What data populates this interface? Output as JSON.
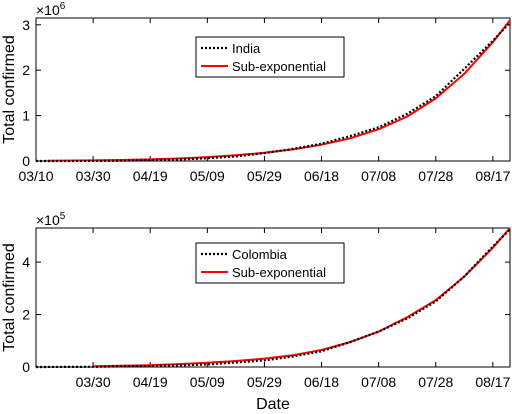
{
  "chart_data": [
    {
      "type": "line",
      "ylabel": "Total confirmed",
      "xlabel": "",
      "y_multiplier_base": "×10",
      "y_multiplier_exp": "6",
      "x_range": [
        "03/10",
        "08/23"
      ],
      "ylim": [
        0,
        3.15
      ],
      "y_ticks": [
        "0",
        "1",
        "2",
        "3"
      ],
      "x_tick_labels": [
        "03/10",
        "03/30",
        "04/19",
        "05/09",
        "05/29",
        "06/18",
        "07/08",
        "07/28",
        "08/17"
      ],
      "legend_placement": "top-center",
      "grid": false,
      "series": [
        {
          "name": "India",
          "style": "dotted",
          "color": "#000000",
          "x": [
            "03/10",
            "03/20",
            "03/30",
            "04/09",
            "04/19",
            "04/29",
            "05/09",
            "05/19",
            "05/29",
            "06/08",
            "06/18",
            "06/28",
            "07/08",
            "07/18",
            "07/28",
            "08/07",
            "08/17",
            "08/23"
          ],
          "values": [
            0.0001,
            0.0003,
            0.0012,
            0.007,
            0.017,
            0.033,
            0.062,
            0.101,
            0.173,
            0.266,
            0.381,
            0.549,
            0.743,
            1.04,
            1.43,
            2.03,
            2.65,
            3.05
          ]
        },
        {
          "name": "Sub-exponential",
          "style": "solid",
          "color": "#ff0000",
          "x": [
            "03/14",
            "03/20",
            "03/30",
            "04/09",
            "04/19",
            "04/29",
            "05/09",
            "05/19",
            "05/29",
            "06/08",
            "06/18",
            "06/28",
            "07/08",
            "07/18",
            "07/28",
            "08/07",
            "08/17",
            "08/23"
          ],
          "values": [
            0.005,
            0.008,
            0.014,
            0.023,
            0.036,
            0.056,
            0.085,
            0.125,
            0.18,
            0.255,
            0.36,
            0.5,
            0.7,
            0.98,
            1.38,
            1.92,
            2.62,
            3.1
          ]
        }
      ]
    },
    {
      "type": "line",
      "ylabel": "Total confirmed",
      "xlabel": "Date",
      "y_multiplier_base": "×10",
      "y_multiplier_exp": "5",
      "x_range": [
        "03/10",
        "08/23"
      ],
      "ylim": [
        0,
        5.3
      ],
      "y_ticks": [
        "0",
        "2",
        "4"
      ],
      "x_tick_labels": [
        "03/30",
        "04/19",
        "05/09",
        "05/29",
        "06/18",
        "07/08",
        "07/28",
        "08/17"
      ],
      "legend_placement": "top-center",
      "grid": false,
      "series": [
        {
          "name": "Colombia",
          "style": "dotted",
          "color": "#000000",
          "x": [
            "03/10",
            "03/20",
            "03/30",
            "04/09",
            "04/19",
            "04/29",
            "05/09",
            "05/19",
            "05/29",
            "06/08",
            "06/18",
            "06/28",
            "07/08",
            "07/18",
            "07/28",
            "08/07",
            "08/17",
            "08/23"
          ],
          "values": [
            0.0,
            0.002,
            0.008,
            0.025,
            0.04,
            0.06,
            0.1,
            0.17,
            0.25,
            0.4,
            0.6,
            0.95,
            1.35,
            1.85,
            2.5,
            3.45,
            4.6,
            5.25
          ]
        },
        {
          "name": "Sub-exponential",
          "style": "solid",
          "color": "#ff0000",
          "x": [
            "03/30",
            "04/09",
            "04/19",
            "04/29",
            "05/09",
            "05/19",
            "05/29",
            "06/08",
            "06/18",
            "06/28",
            "07/08",
            "07/18",
            "07/28",
            "08/07",
            "08/17",
            "08/23"
          ],
          "values": [
            0.03,
            0.05,
            0.07,
            0.11,
            0.16,
            0.23,
            0.32,
            0.45,
            0.65,
            0.95,
            1.35,
            1.9,
            2.55,
            3.45,
            4.55,
            5.3
          ]
        }
      ]
    }
  ]
}
